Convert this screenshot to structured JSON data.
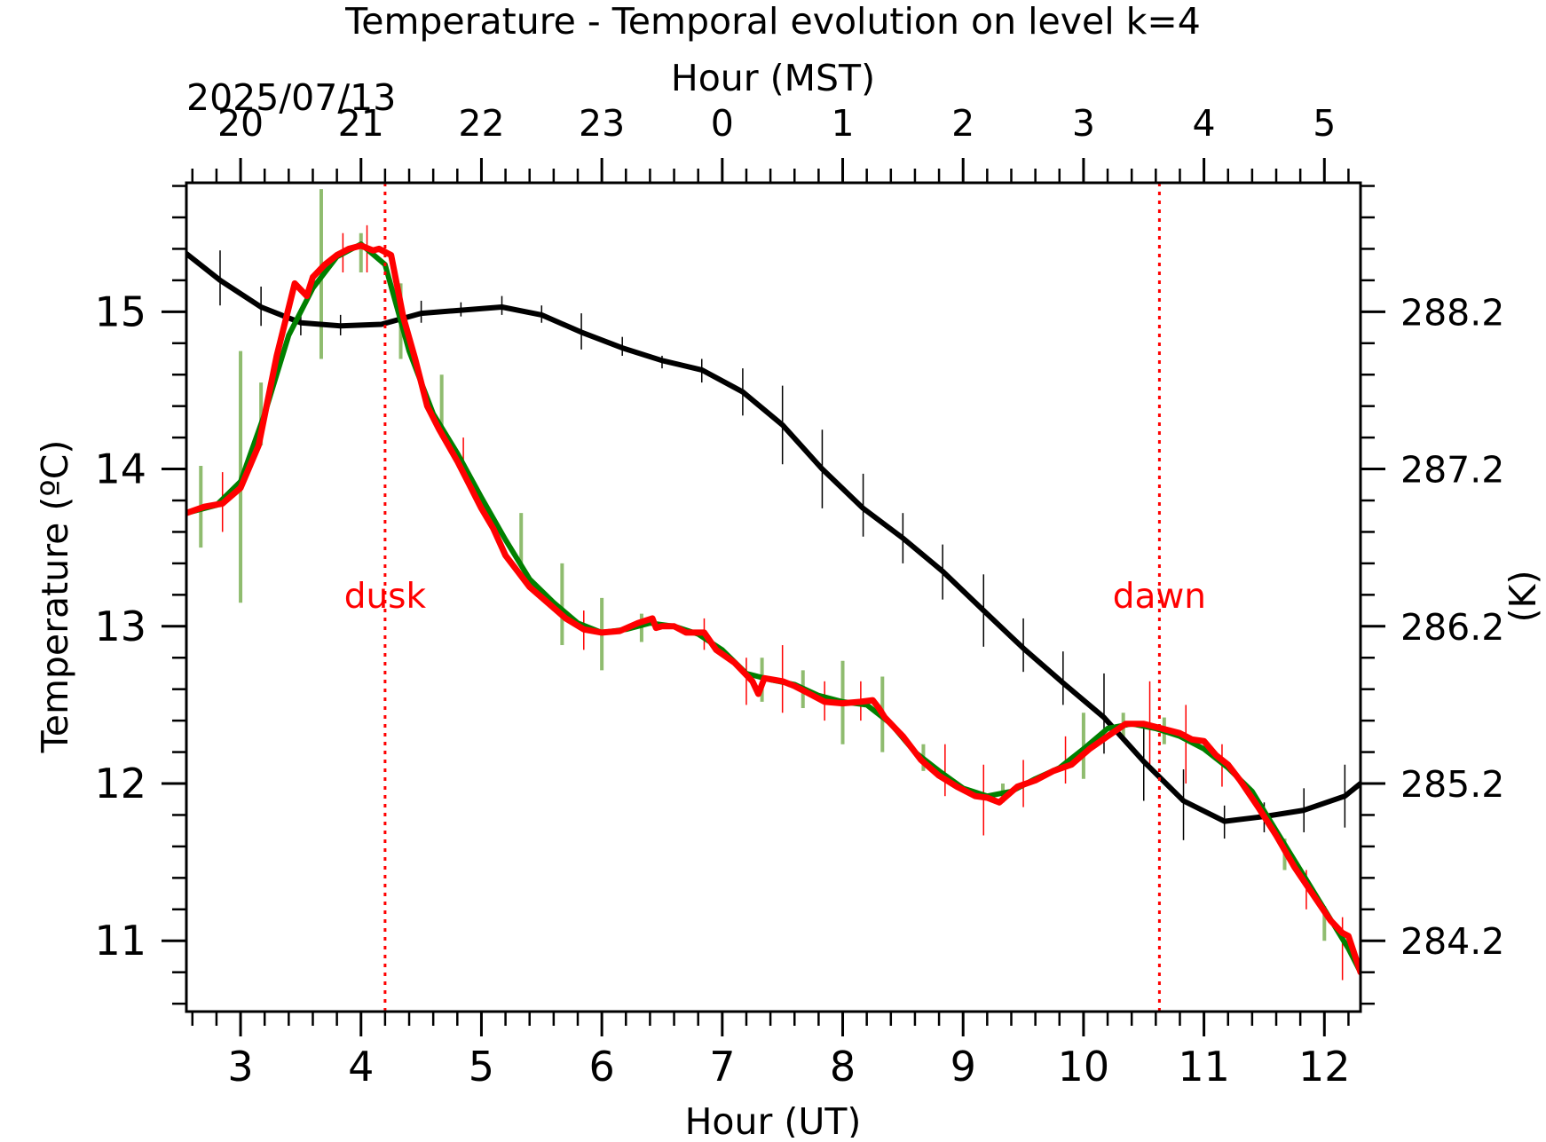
{
  "chart_data": {
    "type": "line",
    "title": "Temperature - Temporal evolution on level k=4",
    "xlabel": "Hour (UT)",
    "x2label": "Hour (MST)",
    "ylabel": "Temperature (ºC)",
    "y2label": "(K)",
    "date_label": "2025/07/13",
    "xlim": [
      2.55,
      12.3
    ],
    "ylim": [
      10.55,
      15.82
    ],
    "x_ticks": [
      3,
      4,
      5,
      6,
      7,
      8,
      9,
      10,
      11,
      12
    ],
    "x_tick_labels": [
      "3",
      "4",
      "5",
      "6",
      "7",
      "8",
      "9",
      "10",
      "11",
      "12"
    ],
    "x2_ticks": [
      3,
      4,
      5,
      6,
      7,
      8,
      9,
      10,
      11,
      12
    ],
    "x2_tick_labels": [
      "20",
      "21",
      "22",
      "23",
      "0",
      "1",
      "2",
      "3",
      "4",
      "5"
    ],
    "y_ticks": [
      11,
      12,
      13,
      14,
      15
    ],
    "y_tick_labels": [
      "11",
      "12",
      "13",
      "14",
      "15"
    ],
    "y2_ticks": [
      11,
      12,
      13,
      14,
      15
    ],
    "y2_tick_labels": [
      "284.2",
      "285.2",
      "286.2",
      "287.2",
      "288.2"
    ],
    "annotations": [
      {
        "text": "dusk",
        "x": 4.2,
        "color": "#ff0000"
      },
      {
        "text": "dawn",
        "x": 10.63,
        "color": "#ff0000"
      }
    ],
    "series": [
      {
        "color": "#000000",
        "x": [
          2.55,
          2.83,
          3.17,
          3.5,
          3.83,
          4.17,
          4.5,
          4.83,
          5.17,
          5.5,
          5.83,
          6.17,
          6.5,
          6.83,
          7.17,
          7.5,
          7.83,
          8.17,
          8.5,
          8.83,
          9.17,
          9.5,
          9.83,
          10.17,
          10.5,
          10.83,
          11.17,
          11.5,
          11.83,
          12.17,
          12.3
        ],
        "y": [
          15.37,
          15.2,
          15.03,
          14.93,
          14.91,
          14.92,
          14.99,
          15.01,
          15.03,
          14.98,
          14.87,
          14.77,
          14.69,
          14.63,
          14.49,
          14.28,
          14.0,
          13.75,
          13.56,
          13.35,
          13.1,
          12.86,
          12.64,
          12.42,
          12.14,
          11.89,
          11.76,
          11.79,
          11.83,
          11.92,
          12.0
        ],
        "error_bars": [
          {
            "x": 2.83,
            "lo": 15.04,
            "hi": 15.39
          },
          {
            "x": 3.17,
            "lo": 14.91,
            "hi": 15.16
          },
          {
            "x": 3.5,
            "lo": 14.85,
            "hi": 15.01
          },
          {
            "x": 3.83,
            "lo": 14.85,
            "hi": 14.98
          },
          {
            "x": 4.5,
            "lo": 14.93,
            "hi": 15.07
          },
          {
            "x": 4.83,
            "lo": 14.97,
            "hi": 15.06
          },
          {
            "x": 5.17,
            "lo": 14.98,
            "hi": 15.1
          },
          {
            "x": 5.5,
            "lo": 14.93,
            "hi": 15.04
          },
          {
            "x": 5.83,
            "lo": 14.76,
            "hi": 14.99
          },
          {
            "x": 6.17,
            "lo": 14.72,
            "hi": 14.84
          },
          {
            "x": 6.5,
            "lo": 14.64,
            "hi": 14.72
          },
          {
            "x": 6.83,
            "lo": 14.55,
            "hi": 14.7
          },
          {
            "x": 7.17,
            "lo": 14.34,
            "hi": 14.64
          },
          {
            "x": 7.5,
            "lo": 14.03,
            "hi": 14.53
          },
          {
            "x": 7.83,
            "lo": 13.75,
            "hi": 14.25
          },
          {
            "x": 8.17,
            "lo": 13.57,
            "hi": 13.97
          },
          {
            "x": 8.5,
            "lo": 13.4,
            "hi": 13.72
          },
          {
            "x": 8.83,
            "lo": 13.17,
            "hi": 13.52
          },
          {
            "x": 9.17,
            "lo": 12.87,
            "hi": 13.33
          },
          {
            "x": 9.5,
            "lo": 12.71,
            "hi": 13.05
          },
          {
            "x": 9.83,
            "lo": 12.5,
            "hi": 12.84
          },
          {
            "x": 10.17,
            "lo": 12.19,
            "hi": 12.7
          },
          {
            "x": 10.5,
            "lo": 11.89,
            "hi": 12.38
          },
          {
            "x": 10.83,
            "lo": 11.64,
            "hi": 12.09
          },
          {
            "x": 11.17,
            "lo": 11.65,
            "hi": 11.86
          },
          {
            "x": 11.5,
            "lo": 11.69,
            "hi": 11.88
          },
          {
            "x": 11.83,
            "lo": 11.69,
            "hi": 11.97
          },
          {
            "x": 12.17,
            "lo": 11.72,
            "hi": 12.12
          }
        ]
      },
      {
        "color": "#008000",
        "x": [
          2.55,
          2.8,
          3.0,
          3.2,
          3.4,
          3.6,
          3.8,
          4.0,
          4.2,
          4.4,
          4.6,
          4.8,
          5.0,
          5.2,
          5.4,
          5.6,
          5.8,
          6.0,
          6.2,
          6.4,
          6.6,
          6.8,
          7.0,
          7.2,
          7.4,
          7.6,
          7.8,
          8.0,
          8.2,
          8.4,
          8.6,
          8.8,
          9.0,
          9.2,
          9.4,
          9.6,
          9.8,
          10.0,
          10.2,
          10.4,
          10.6,
          10.8,
          11.0,
          11.2,
          11.4,
          11.6,
          11.8,
          12.0,
          12.2,
          12.3
        ],
        "y": [
          13.72,
          13.77,
          13.92,
          14.35,
          14.85,
          15.15,
          15.35,
          15.43,
          15.3,
          14.75,
          14.35,
          14.1,
          13.82,
          13.55,
          13.3,
          13.15,
          13.02,
          12.96,
          12.98,
          13.02,
          13.0,
          12.95,
          12.85,
          12.7,
          12.66,
          12.63,
          12.56,
          12.52,
          12.5,
          12.38,
          12.2,
          12.08,
          11.97,
          11.92,
          11.95,
          12.03,
          12.1,
          12.22,
          12.35,
          12.38,
          12.35,
          12.3,
          12.22,
          12.1,
          11.95,
          11.7,
          11.45,
          11.2,
          10.95,
          10.8
        ]
      },
      {
        "color": "#ff0000",
        "x": [
          2.55,
          2.7,
          2.85,
          3.0,
          3.15,
          3.3,
          3.45,
          3.55,
          3.6,
          3.7,
          3.8,
          3.9,
          4.0,
          4.1,
          4.15,
          4.2,
          4.25,
          4.35,
          4.45,
          4.55,
          4.65,
          4.8,
          4.9,
          5.0,
          5.1,
          5.2,
          5.3,
          5.4,
          5.55,
          5.7,
          5.85,
          6.0,
          6.15,
          6.3,
          6.42,
          6.45,
          6.5,
          6.6,
          6.7,
          6.85,
          6.95,
          7.1,
          7.25,
          7.3,
          7.35,
          7.5,
          7.6,
          7.7,
          7.85,
          8.0,
          8.15,
          8.25,
          8.3,
          8.35,
          8.5,
          8.65,
          8.8,
          8.95,
          9.1,
          9.2,
          9.3,
          9.45,
          9.6,
          9.75,
          9.9,
          10.05,
          10.2,
          10.35,
          10.5,
          10.65,
          10.8,
          10.9,
          11.0,
          11.1,
          11.2,
          11.3,
          11.45,
          11.6,
          11.75,
          11.9,
          12.05,
          12.15,
          12.2,
          12.3
        ],
        "y": [
          13.72,
          13.76,
          13.78,
          13.88,
          14.15,
          14.72,
          15.18,
          15.1,
          15.22,
          15.3,
          15.36,
          15.4,
          15.42,
          15.39,
          15.4,
          15.38,
          15.36,
          14.97,
          14.7,
          14.4,
          14.25,
          14.05,
          13.9,
          13.75,
          13.62,
          13.45,
          13.35,
          13.25,
          13.15,
          13.05,
          12.98,
          12.96,
          12.97,
          13.02,
          13.05,
          12.99,
          13.0,
          13.0,
          12.96,
          12.96,
          12.85,
          12.77,
          12.65,
          12.57,
          12.67,
          12.65,
          12.62,
          12.58,
          12.52,
          12.51,
          12.52,
          12.53,
          12.48,
          12.42,
          12.3,
          12.15,
          12.05,
          11.98,
          11.92,
          11.91,
          11.88,
          11.98,
          12.02,
          12.08,
          12.12,
          12.22,
          12.3,
          12.38,
          12.38,
          12.35,
          12.32,
          12.28,
          12.27,
          12.18,
          12.12,
          12.02,
          11.85,
          11.67,
          11.47,
          11.3,
          11.13,
          11.05,
          11.03,
          10.8
        ],
        "error_bars": [
          {
            "x": 2.85,
            "lo": 13.6,
            "hi": 13.98
          },
          {
            "x": 3.85,
            "lo": 15.25,
            "hi": 15.5
          },
          {
            "x": 4.05,
            "lo": 15.25,
            "hi": 15.55
          },
          {
            "x": 4.85,
            "lo": 13.95,
            "hi": 14.2
          },
          {
            "x": 5.85,
            "lo": 12.85,
            "hi": 13.1
          },
          {
            "x": 6.85,
            "lo": 12.85,
            "hi": 13.05
          },
          {
            "x": 7.2,
            "lo": 12.5,
            "hi": 12.8
          },
          {
            "x": 7.5,
            "lo": 12.45,
            "hi": 12.88
          },
          {
            "x": 7.85,
            "lo": 12.4,
            "hi": 12.65
          },
          {
            "x": 8.15,
            "lo": 12.4,
            "hi": 12.65
          },
          {
            "x": 8.85,
            "lo": 11.92,
            "hi": 12.25
          },
          {
            "x": 9.17,
            "lo": 11.67,
            "hi": 12.12
          },
          {
            "x": 9.5,
            "lo": 11.85,
            "hi": 12.15
          },
          {
            "x": 9.85,
            "lo": 12.0,
            "hi": 12.3
          },
          {
            "x": 10.55,
            "lo": 12.1,
            "hi": 12.65
          },
          {
            "x": 10.85,
            "lo": 12.0,
            "hi": 12.5
          },
          {
            "x": 11.15,
            "lo": 11.98,
            "hi": 12.25
          },
          {
            "x": 11.85,
            "lo": 11.2,
            "hi": 11.45
          },
          {
            "x": 12.15,
            "lo": 10.75,
            "hi": 11.15
          }
        ]
      },
      {
        "color": "#8fbc6f",
        "error_bars": [
          {
            "x": 2.67,
            "lo": 13.5,
            "hi": 14.02
          },
          {
            "x": 3.0,
            "lo": 13.15,
            "hi": 14.75
          },
          {
            "x": 3.17,
            "lo": 14.15,
            "hi": 14.55
          },
          {
            "x": 3.67,
            "lo": 14.7,
            "hi": 15.78
          },
          {
            "x": 4.0,
            "lo": 15.25,
            "hi": 15.5
          },
          {
            "x": 4.33,
            "lo": 14.7,
            "hi": 15.18
          },
          {
            "x": 4.67,
            "lo": 14.2,
            "hi": 14.6
          },
          {
            "x": 5.33,
            "lo": 13.38,
            "hi": 13.72
          },
          {
            "x": 5.67,
            "lo": 12.88,
            "hi": 13.4
          },
          {
            "x": 6.0,
            "lo": 12.72,
            "hi": 13.18
          },
          {
            "x": 6.33,
            "lo": 12.9,
            "hi": 13.08
          },
          {
            "x": 7.33,
            "lo": 12.52,
            "hi": 12.8
          },
          {
            "x": 7.67,
            "lo": 12.48,
            "hi": 12.72
          },
          {
            "x": 8.0,
            "lo": 12.25,
            "hi": 12.78
          },
          {
            "x": 8.33,
            "lo": 12.2,
            "hi": 12.68
          },
          {
            "x": 8.67,
            "lo": 12.08,
            "hi": 12.25
          },
          {
            "x": 9.33,
            "lo": 11.88,
            "hi": 12.0
          },
          {
            "x": 10.0,
            "lo": 12.03,
            "hi": 12.45
          },
          {
            "x": 10.33,
            "lo": 12.3,
            "hi": 12.45
          },
          {
            "x": 10.67,
            "lo": 12.25,
            "hi": 12.42
          },
          {
            "x": 11.67,
            "lo": 11.45,
            "hi": 11.65
          },
          {
            "x": 12.0,
            "lo": 11.0,
            "hi": 11.22
          }
        ]
      }
    ]
  }
}
